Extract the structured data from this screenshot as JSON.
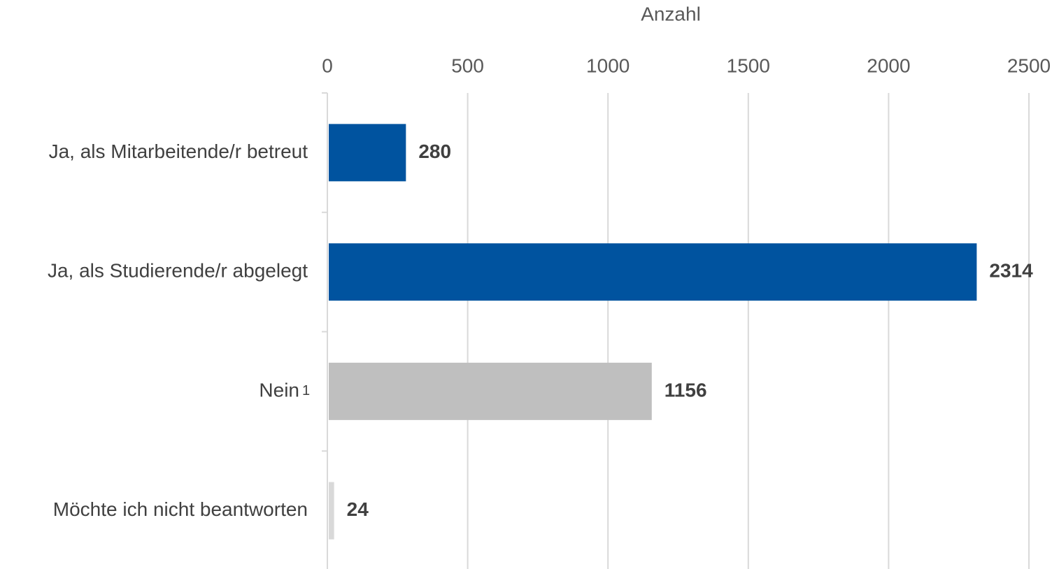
{
  "chart_data": {
    "type": "bar",
    "orientation": "horizontal",
    "x_label": "Anzahl",
    "categories": [
      "Ja, als Mitarbeitende/r betreut",
      "Ja, als Studierende/r abgelegt",
      "Nein",
      "Möchte ich nicht beantworten"
    ],
    "category_footnotes": [
      null,
      null,
      "1",
      null
    ],
    "values": [
      280,
      2314,
      1156,
      24
    ],
    "colors": [
      "#00539f",
      "#00539f",
      "#bfbfbf",
      "#d9d9d9"
    ],
    "xlim": [
      0,
      2500
    ],
    "xticks": [
      0,
      500,
      1000,
      1500,
      2000,
      2500
    ],
    "grid": true
  }
}
